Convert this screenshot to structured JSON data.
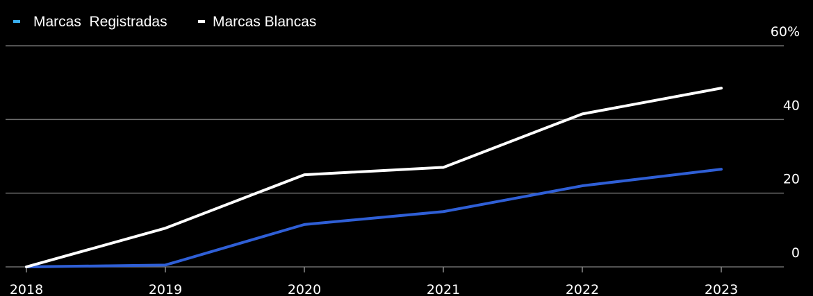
{
  "chart_data": {
    "type": "line",
    "categories": [
      "2018",
      "2019",
      "2020",
      "2021",
      "2022",
      "2023"
    ],
    "series": [
      {
        "name": "Marcas  Registradas",
        "values": [
          0,
          0.5,
          11.5,
          15,
          22,
          26.5
        ],
        "color": "#2f5fd6",
        "legend_color": "#3ab0f0"
      },
      {
        "name": "Marcas Blancas",
        "values": [
          0,
          10.5,
          25,
          27,
          41.5,
          48.5
        ],
        "color": "#ffffff",
        "legend_color": "#ffffff"
      }
    ],
    "y_ticks": [
      {
        "value": 0,
        "label": "0"
      },
      {
        "value": 20,
        "label": "20"
      },
      {
        "value": 40,
        "label": "40"
      },
      {
        "value": 60,
        "label": "60%"
      }
    ],
    "ylim": [
      0,
      60
    ],
    "ylabel": "",
    "xlabel": "",
    "grid": true,
    "y_axis_position": "right",
    "legend_position": "top-left"
  }
}
